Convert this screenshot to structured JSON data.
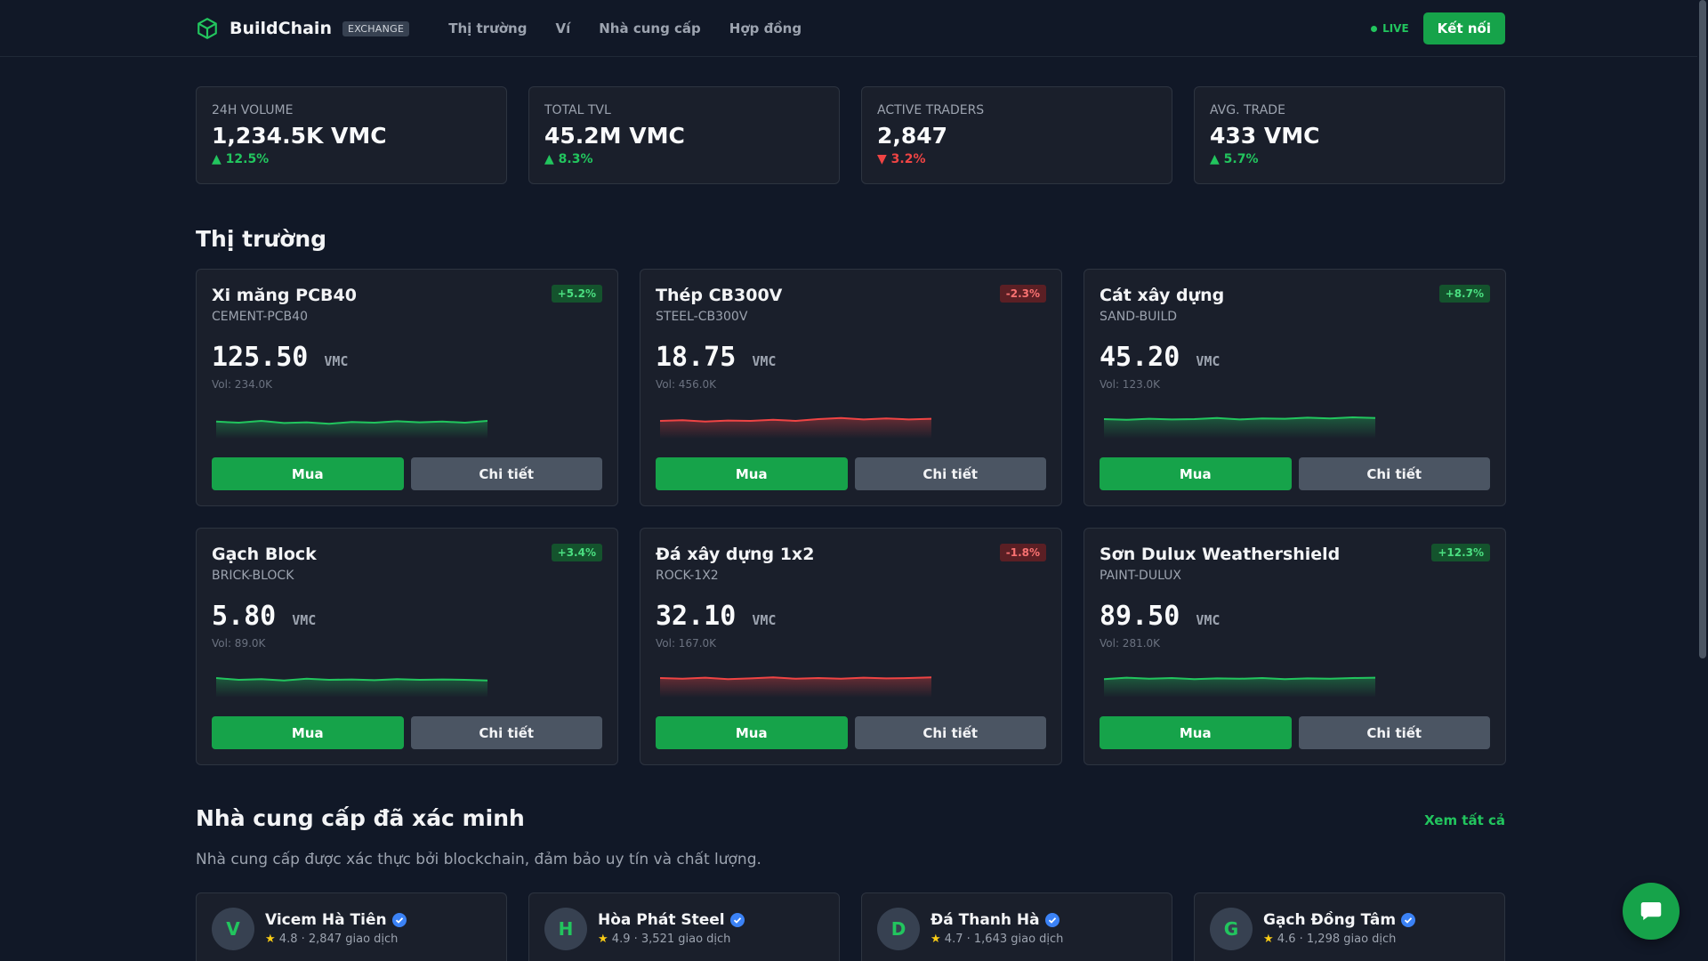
{
  "header": {
    "brand": "BuildChain",
    "badge": "EXCHANGE",
    "nav": [
      "Thị trường",
      "Ví",
      "Nhà cung cấp",
      "Hợp đồng"
    ],
    "live": "LIVE",
    "connect": "Kết nối"
  },
  "stats": [
    {
      "label": "24H VOLUME",
      "value": "1,234.5K VMC",
      "change": "▲ 12.5%",
      "dir": "up"
    },
    {
      "label": "TOTAL TVL",
      "value": "45.2M VMC",
      "change": "▲ 8.3%",
      "dir": "up"
    },
    {
      "label": "ACTIVE TRADERS",
      "value": "2,847",
      "change": "▼ 3.2%",
      "dir": "down"
    },
    {
      "label": "AVG. TRADE",
      "value": "433 VMC",
      "change": "▲ 5.7%",
      "dir": "up"
    }
  ],
  "market": {
    "title": "Thị trường",
    "buy_label": "Mua",
    "detail_label": "Chi tiết",
    "unit": "VMC",
    "items": [
      {
        "name": "Xi măng PCB40",
        "symbol": "CEMENT-PCB40",
        "change": "+5.2%",
        "dir": "up",
        "price": "125.50",
        "volume": "Vol: 234.0K",
        "spark": [
          0.52,
          0.55,
          0.5,
          0.56,
          0.54,
          0.58,
          0.53,
          0.55,
          0.51,
          0.54,
          0.52,
          0.55,
          0.5
        ]
      },
      {
        "name": "Thép CB300V",
        "symbol": "STEEL-CB300V",
        "change": "-2.3%",
        "dir": "down",
        "price": "18.75",
        "volume": "Vol: 456.0K",
        "spark": [
          0.5,
          0.48,
          0.52,
          0.49,
          0.5,
          0.47,
          0.5,
          0.45,
          0.42,
          0.46,
          0.43,
          0.46,
          0.44
        ]
      },
      {
        "name": "Cát xây dựng",
        "symbol": "SAND-BUILD",
        "change": "+8.7%",
        "dir": "up",
        "price": "45.20",
        "volume": "Vol: 123.0K",
        "spark": [
          0.45,
          0.47,
          0.44,
          0.46,
          0.45,
          0.42,
          0.46,
          0.43,
          0.44,
          0.41,
          0.43,
          0.4,
          0.42
        ]
      },
      {
        "name": "Gạch Block",
        "symbol": "BRICK-BLOCK",
        "change": "+3.4%",
        "dir": "up",
        "price": "5.80",
        "volume": "Vol: 89.0K",
        "spark": [
          0.45,
          0.5,
          0.48,
          0.52,
          0.47,
          0.5,
          0.49,
          0.51,
          0.48,
          0.5,
          0.49,
          0.5,
          0.52
        ]
      },
      {
        "name": "Đá xây dựng 1x2",
        "symbol": "ROCK-1X2",
        "change": "-1.8%",
        "dir": "down",
        "price": "32.10",
        "volume": "Vol: 167.0K",
        "spark": [
          0.45,
          0.47,
          0.44,
          0.48,
          0.46,
          0.43,
          0.47,
          0.45,
          0.47,
          0.44,
          0.46,
          0.45,
          0.43
        ]
      },
      {
        "name": "Sơn Dulux Weathershield",
        "symbol": "PAINT-DULUX",
        "change": "+12.3%",
        "dir": "up",
        "price": "89.50",
        "volume": "Vol: 281.0K",
        "spark": [
          0.48,
          0.44,
          0.47,
          0.45,
          0.48,
          0.46,
          0.47,
          0.45,
          0.48,
          0.46,
          0.47,
          0.45,
          0.44
        ]
      }
    ]
  },
  "suppliers": {
    "title": "Nhà cung cấp đã xác minh",
    "view_all": "Xem tất cả",
    "subtitle": "Nhà cung cấp được xác thực bởi blockchain, đảm bảo uy tín và chất lượng.",
    "items": [
      {
        "initial": "V",
        "name": "Vicem Hà Tiên",
        "rating": "4.8",
        "deals": "2,847 giao dịch"
      },
      {
        "initial": "H",
        "name": "Hòa Phát Steel",
        "rating": "4.9",
        "deals": "3,521 giao dịch"
      },
      {
        "initial": "D",
        "name": "Đá Thanh Hà",
        "rating": "4.7",
        "deals": "1,643 giao dịch"
      },
      {
        "initial": "G",
        "name": "Gạch Đồng Tâm",
        "rating": "4.6",
        "deals": "1,298 giao dịch"
      }
    ]
  },
  "colors": {
    "accent": "#16a34a",
    "up": "#22c55e",
    "down": "#ef4444",
    "bg": "#111827"
  }
}
